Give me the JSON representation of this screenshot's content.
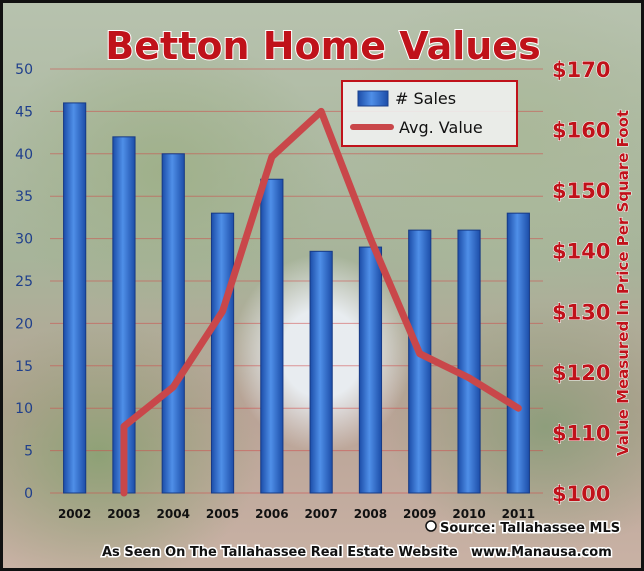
{
  "chart_data": {
    "type": "bar+line",
    "title": "Betton Home Values",
    "categories": [
      "2002",
      "2003",
      "2004",
      "2005",
      "2006",
      "2007",
      "2008",
      "2009",
      "2010",
      "2011"
    ],
    "series": [
      {
        "name": "# Sales",
        "type": "bar",
        "axis": "left",
        "values": [
          46,
          42,
          40,
          33,
          37,
          28.5,
          29,
          31,
          31,
          33
        ]
      },
      {
        "name": "Avg. Value",
        "type": "line",
        "axis": "right",
        "values": [
          null,
          111,
          117.5,
          130,
          155.5,
          163,
          142,
          123,
          119,
          114
        ]
      }
    ],
    "y_left": {
      "ylim": [
        0,
        50
      ],
      "ticks": [
        "0",
        "5",
        "10",
        "15",
        "20",
        "25",
        "30",
        "35",
        "40",
        "45",
        "50"
      ],
      "label": ""
    },
    "y_right": {
      "ylim": [
        100,
        170
      ],
      "ticks": [
        "$100",
        "$110",
        "$120",
        "$130",
        "$140",
        "$150",
        "$160",
        "$170"
      ],
      "label": "Value Measured In Price Per Square Foot"
    },
    "legend": "top-right",
    "grid": true,
    "colors": {
      "bar": "#2f6fcf",
      "line": "#c9474a",
      "title": "#c0121a"
    }
  },
  "footer": {
    "source": "Source: Tallahassee MLS",
    "tagline": "As Seen On The Tallahassee Real Estate Website",
    "website": "www.Manausa.com"
  }
}
